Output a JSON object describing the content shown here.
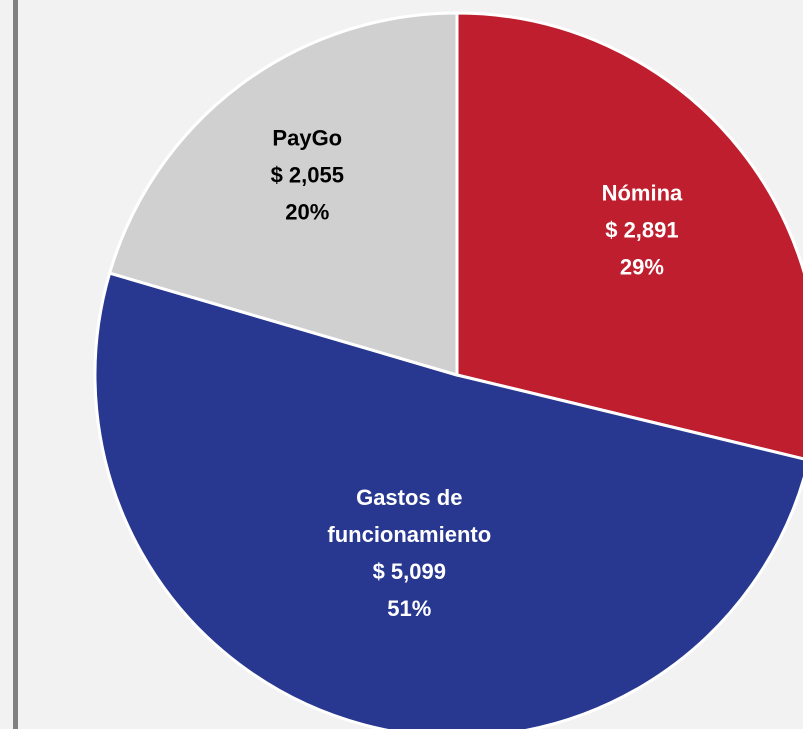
{
  "chart_data": {
    "type": "pie",
    "categories": [
      "Nómina",
      "Gastos de funcionamiento",
      "PayGo"
    ],
    "values": [
      2891,
      5099,
      2055
    ],
    "value_labels": [
      "$ 2,891",
      "$ 5,099",
      "$ 2,055"
    ],
    "percentages": [
      29,
      51,
      20
    ],
    "percentage_labels": [
      "29%",
      "51%",
      "20%"
    ],
    "colors": [
      "#be1e2d",
      "#283891",
      "#d0d0d0"
    ]
  }
}
